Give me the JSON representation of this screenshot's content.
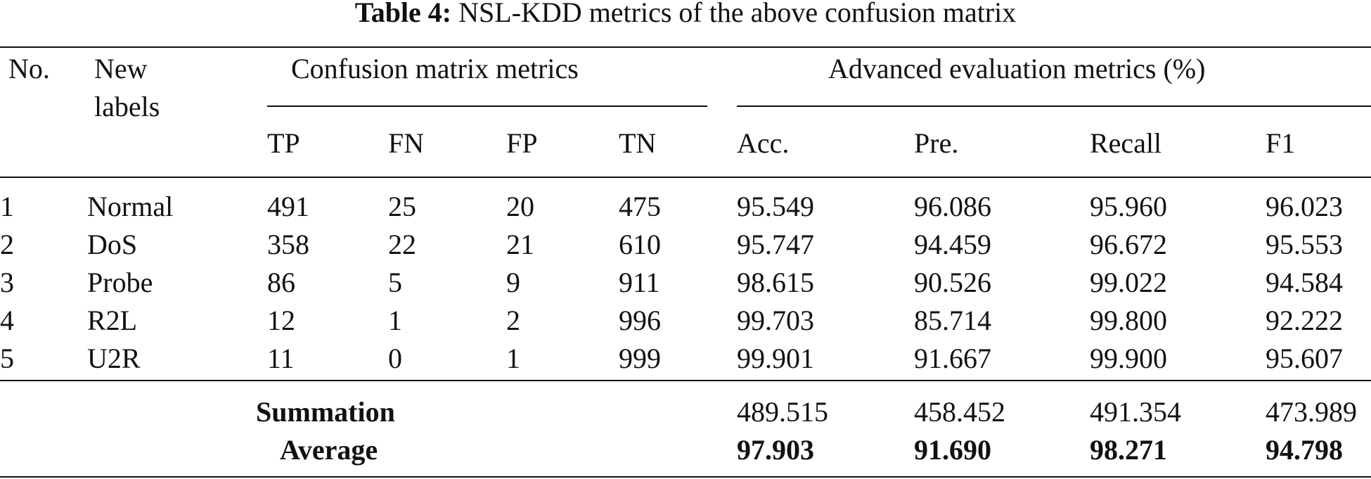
{
  "caption": {
    "label": "Table 4:",
    "text": "NSL-KDD metrics of the above confusion matrix"
  },
  "header": {
    "no": "No.",
    "new_labels_line1": "New",
    "new_labels_line2": "labels",
    "group_confusion": "Confusion matrix metrics",
    "group_advanced": "Advanced evaluation metrics (%)",
    "columns": [
      "TP",
      "FN",
      "FP",
      "TN",
      "Acc.",
      "Pre.",
      "Recall",
      "F1"
    ]
  },
  "rows": [
    [
      "1",
      "Normal",
      "491",
      "25",
      "20",
      "475",
      "95.549",
      "96.086",
      "95.960",
      "96.023"
    ],
    [
      "2",
      "DoS",
      "358",
      "22",
      "21",
      "610",
      "95.747",
      "94.459",
      "96.672",
      "95.553"
    ],
    [
      "3",
      "Probe",
      "86",
      "5",
      "9",
      "911",
      "98.615",
      "90.526",
      "99.022",
      "94.584"
    ],
    [
      "4",
      "R2L",
      "12",
      "1",
      "2",
      "996",
      "99.703",
      "85.714",
      "99.800",
      "92.222"
    ],
    [
      "5",
      "U2R",
      "11",
      "0",
      "1",
      "999",
      "99.901",
      "91.667",
      "99.900",
      "95.607"
    ]
  ],
  "summary": {
    "summation_label": "Summation",
    "summation_values": [
      "489.515",
      "458.452",
      "491.354",
      "473.989"
    ],
    "average_label": "Average",
    "average_values": [
      "97.903",
      "91.690",
      "98.271",
      "94.798"
    ]
  }
}
